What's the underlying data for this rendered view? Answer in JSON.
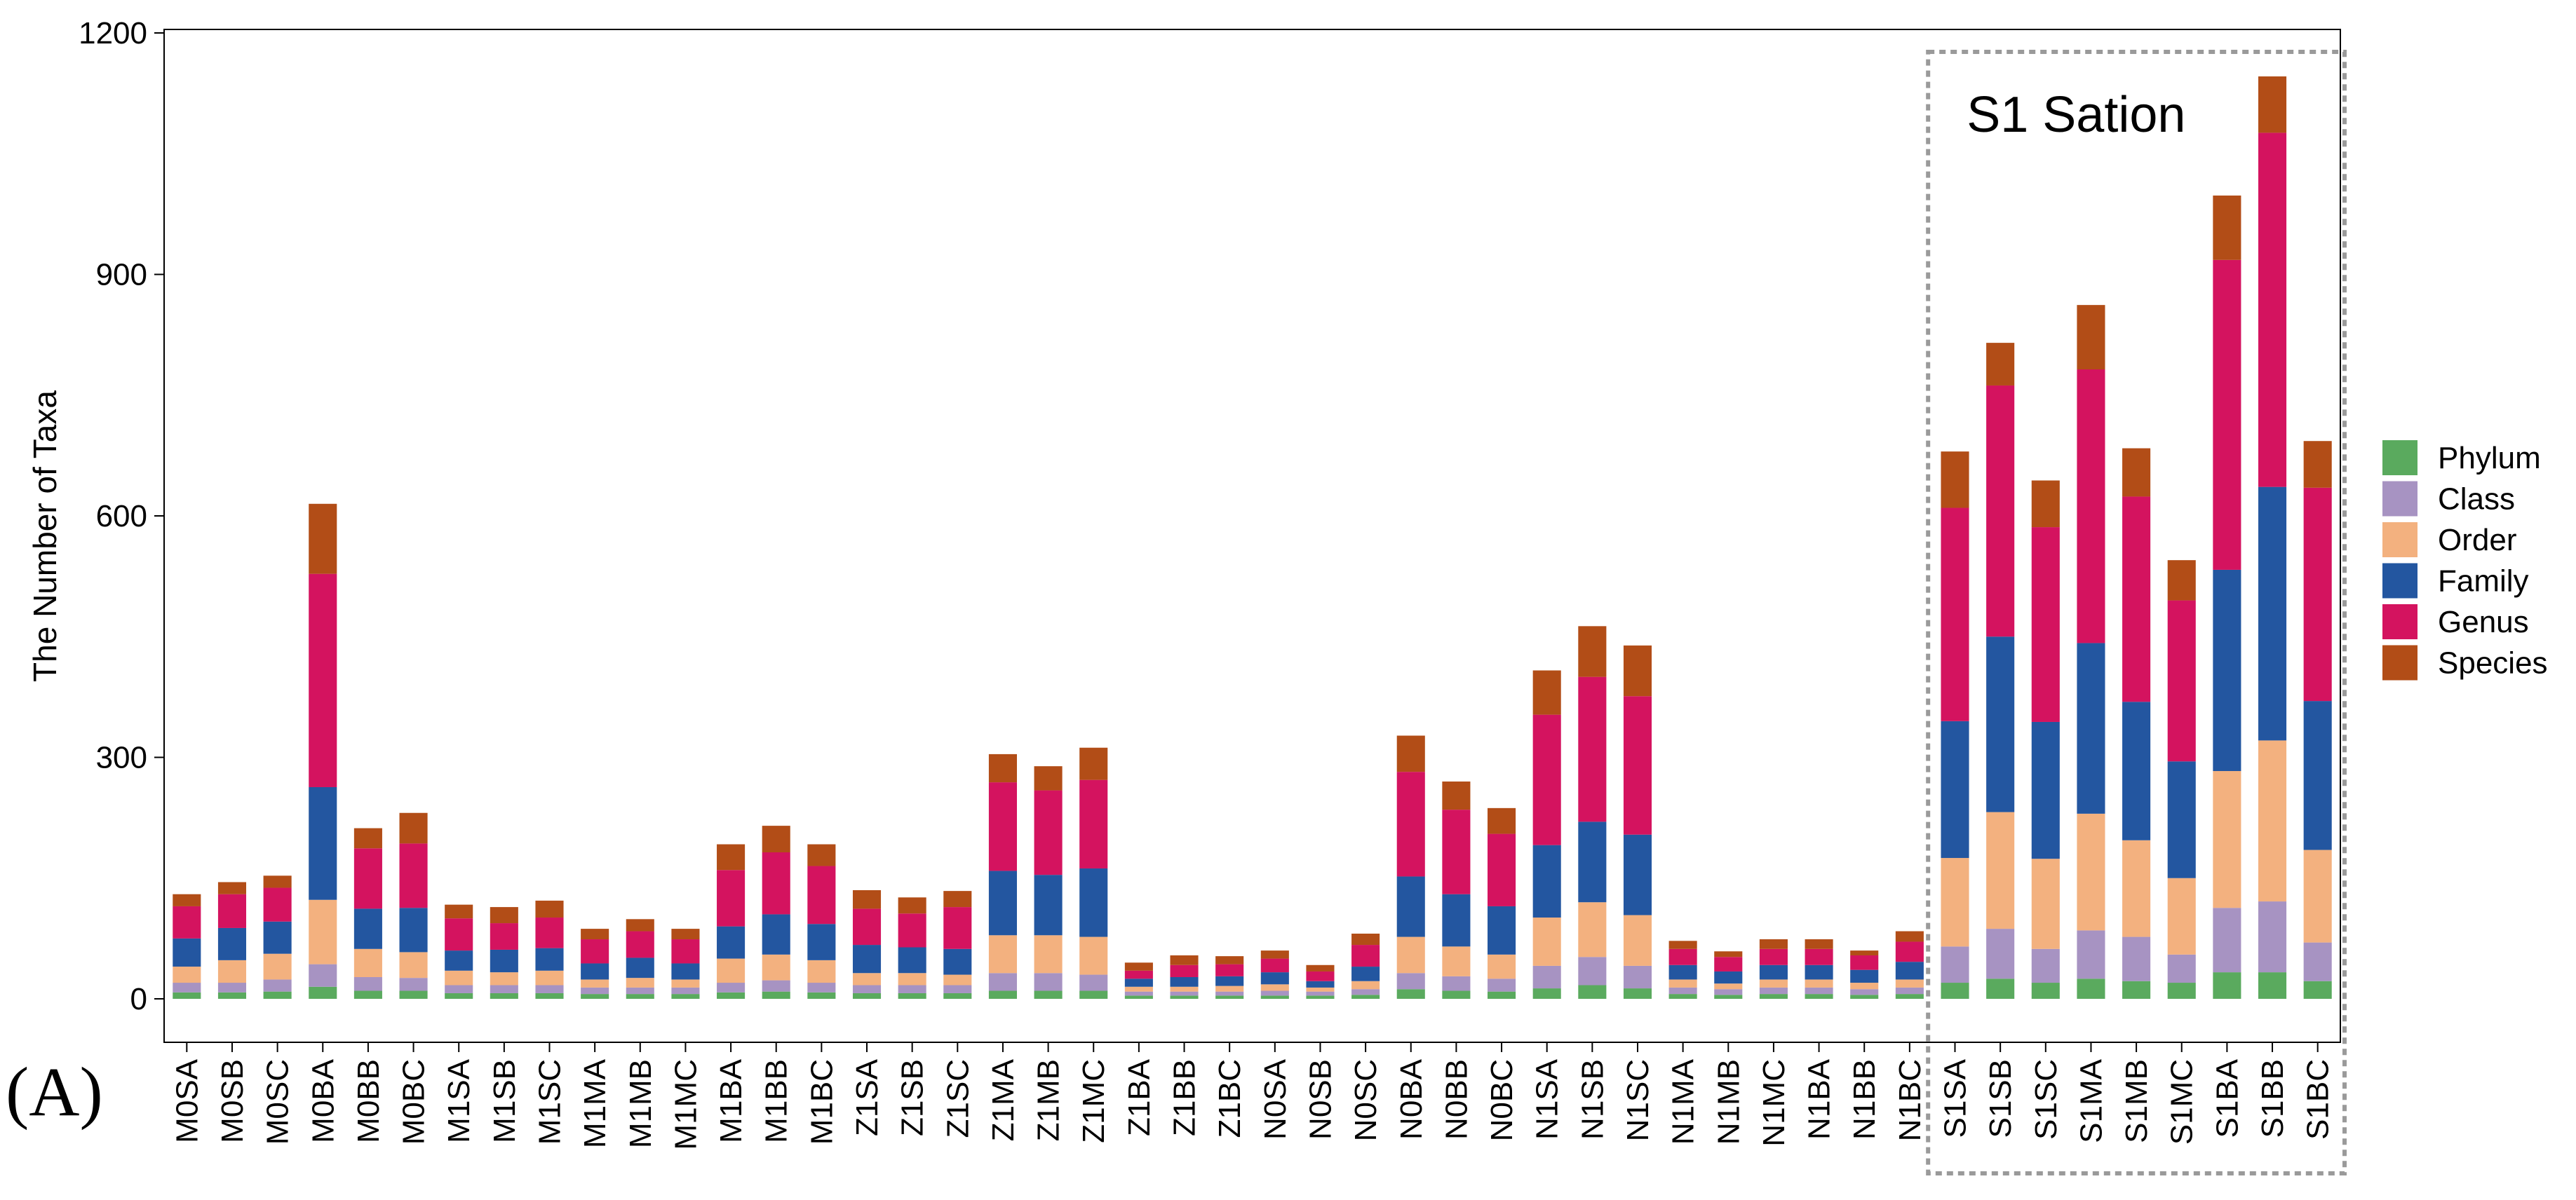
{
  "panel_label": "(A)",
  "chart_data": {
    "type": "bar",
    "stacked": true,
    "title": "",
    "xlabel": "",
    "ylabel": "The Number of Taxa",
    "ylim": [
      0,
      1260
    ],
    "yticks": [
      0,
      300,
      600,
      900,
      1200
    ],
    "highlight": {
      "label": "S1 Sation",
      "from_category": "S1SA",
      "to_category": "S1BC"
    },
    "legend": {
      "position": "right",
      "entries": [
        "Phylum",
        "Class",
        "Order",
        "Family",
        "Genus",
        "Species"
      ]
    },
    "colors": [
      "#5aaa5e",
      "#a793c2",
      "#f3b17f",
      "#2356a0",
      "#d4135f",
      "#b24d17"
    ],
    "categories": [
      "M0SA",
      "M0SB",
      "M0SC",
      "M0BA",
      "M0BB",
      "M0BC",
      "M1SA",
      "M1SB",
      "M1SC",
      "M1MA",
      "M1MB",
      "M1MC",
      "M1BA",
      "M1BB",
      "M1BC",
      "Z1SA",
      "Z1SB",
      "Z1SC",
      "Z1MA",
      "Z1MB",
      "Z1MC",
      "Z1BA",
      "Z1BB",
      "Z1BC",
      "N0SA",
      "N0SB",
      "N0SC",
      "N0BA",
      "N0BB",
      "N0BC",
      "N1SA",
      "N1SB",
      "N1SC",
      "N1MA",
      "N1MB",
      "N1MC",
      "N1BA",
      "N1BB",
      "N1BC",
      "S1SA",
      "S1SB",
      "S1SC",
      "S1MA",
      "S1MB",
      "S1MC",
      "S1BA",
      "S1BB",
      "S1BC"
    ],
    "series": [
      {
        "name": "Phylum",
        "values": [
          8,
          8,
          9,
          15,
          10,
          10,
          7,
          7,
          7,
          6,
          6,
          6,
          8,
          9,
          8,
          7,
          7,
          7,
          10,
          10,
          10,
          4,
          4,
          4,
          4,
          4,
          5,
          12,
          10,
          9,
          13,
          17,
          13,
          6,
          5,
          6,
          6,
          5,
          6,
          20,
          25,
          20,
          25,
          22,
          20,
          33,
          33,
          22
        ]
      },
      {
        "name": "Class",
        "values": [
          12,
          12,
          15,
          28,
          17,
          16,
          10,
          10,
          10,
          8,
          8,
          8,
          12,
          14,
          12,
          10,
          10,
          10,
          22,
          22,
          20,
          5,
          5,
          5,
          6,
          5,
          7,
          20,
          18,
          16,
          28,
          35,
          28,
          8,
          7,
          8,
          8,
          7,
          8,
          45,
          62,
          42,
          60,
          55,
          35,
          80,
          88,
          48
        ]
      },
      {
        "name": "Order",
        "values": [
          20,
          28,
          32,
          80,
          35,
          32,
          18,
          16,
          18,
          10,
          12,
          10,
          30,
          32,
          28,
          15,
          15,
          13,
          47,
          47,
          47,
          6,
          6,
          7,
          8,
          5,
          10,
          45,
          37,
          30,
          60,
          68,
          63,
          10,
          7,
          10,
          10,
          8,
          10,
          110,
          145,
          112,
          145,
          120,
          95,
          170,
          200,
          115
        ]
      },
      {
        "name": "Family",
        "values": [
          35,
          40,
          40,
          140,
          50,
          55,
          25,
          28,
          28,
          20,
          25,
          20,
          40,
          50,
          45,
          35,
          32,
          32,
          80,
          75,
          85,
          10,
          12,
          12,
          15,
          8,
          18,
          75,
          65,
          60,
          90,
          100,
          100,
          18,
          15,
          18,
          18,
          16,
          22,
          170,
          218,
          170,
          212,
          172,
          145,
          250,
          315,
          185
        ]
      },
      {
        "name": "Genus",
        "values": [
          40,
          42,
          42,
          265,
          75,
          80,
          40,
          33,
          38,
          30,
          33,
          30,
          70,
          77,
          72,
          45,
          42,
          52,
          110,
          105,
          110,
          10,
          15,
          15,
          17,
          12,
          27,
          130,
          105,
          90,
          162,
          180,
          172,
          20,
          18,
          20,
          20,
          18,
          25,
          265,
          312,
          242,
          340,
          255,
          200,
          385,
          440,
          265
        ]
      },
      {
        "name": "Species",
        "values": [
          15,
          15,
          15,
          87,
          25,
          38,
          17,
          20,
          21,
          13,
          15,
          13,
          32,
          33,
          27,
          23,
          20,
          20,
          35,
          30,
          40,
          10,
          12,
          10,
          10,
          8,
          14,
          45,
          35,
          32,
          55,
          63,
          63,
          10,
          7,
          12,
          12,
          6,
          13,
          70,
          53,
          58,
          80,
          60,
          50,
          80,
          70,
          58
        ]
      }
    ]
  }
}
